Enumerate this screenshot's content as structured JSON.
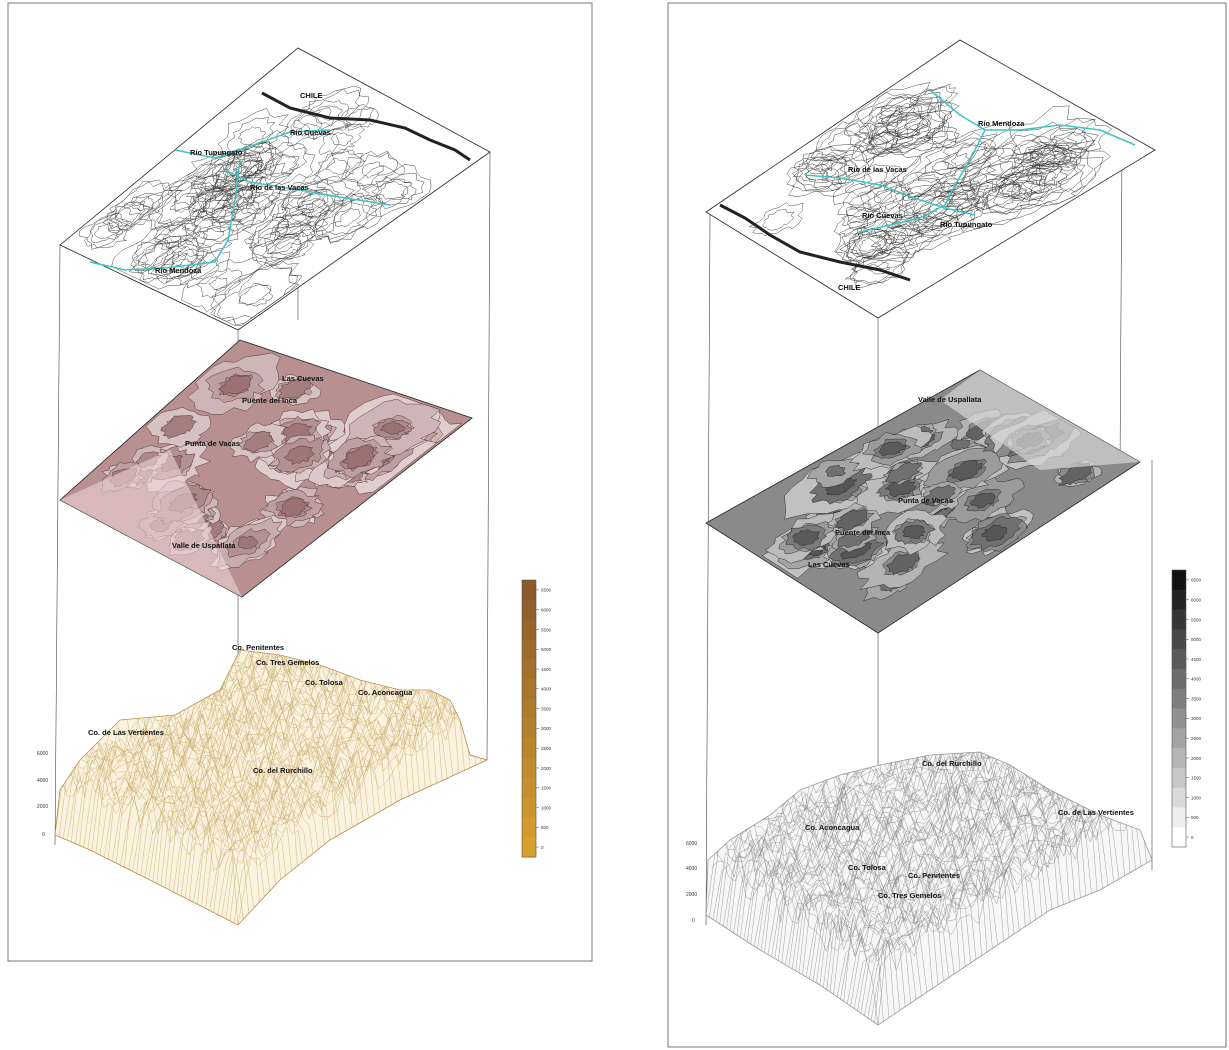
{
  "figure": {
    "panels": [
      {
        "id": "left",
        "top_map": {
          "country": "CHILE",
          "rivers": [
            "Río Cuevas",
            "Río Tupungato",
            "Río de las Vacas",
            "Río Mendoza"
          ]
        },
        "middle_map": {
          "places": [
            "Las Cuevas",
            "Puente del Inca",
            "Punta de Vacas",
            "Valle de Uspallata"
          ]
        },
        "surface": {
          "peaks": [
            "Co. Penitentes",
            "Co. Tres Gemelos",
            "Co. Tolosa",
            "Co. Aconcagua",
            "Co. de Las Vertientes",
            "Co. del Rurchillo"
          ],
          "z_ticks": [
            "6000",
            "4000",
            "2000",
            "0"
          ]
        },
        "colorbar": {
          "ticks": [
            "6500",
            "6000",
            "5500",
            "5000",
            "4500",
            "4000",
            "3500",
            "3000",
            "2500",
            "2000",
            "1500",
            "1000",
            "500",
            "0"
          ],
          "color_low": "#d9a02e",
          "color_high": "#8b5a2b"
        },
        "colors": {
          "contour_fill_dark": "#8a5a5a",
          "contour_fill_light": "#f1e4e4",
          "mesh": "#c8ab6a",
          "river": "#3fc4c4"
        }
      },
      {
        "id": "right",
        "top_map": {
          "country": "CHILE",
          "rivers": [
            "Río Mendoza",
            "Río de las Vacas",
            "Río Cuevas",
            "Río Tupungato"
          ]
        },
        "middle_map": {
          "places": [
            "Valle de Uspallata",
            "Punta de Vacas",
            "Puente del Inca",
            "Las Cuevas"
          ]
        },
        "surface": {
          "peaks": [
            "Co. del Rurchillo",
            "Co. de Las Vertientes",
            "Co. Aconcagua",
            "Co. Tolosa",
            "Co. Penitentes",
            "Co. Tres Gemelos"
          ],
          "z_ticks": [
            "6000",
            "4000",
            "2000",
            "0"
          ]
        },
        "colorbar": {
          "ticks": [
            "6500",
            "6000",
            "5500",
            "5000",
            "4500",
            "4000",
            "3500",
            "3000",
            "2500",
            "2000",
            "1500",
            "1000",
            "500",
            "0"
          ],
          "color_low": "#ffffff",
          "color_high": "#111111"
        },
        "colors": {
          "contour_fill_dark": "#3a3a3a",
          "contour_fill_light": "#dcdcdc",
          "mesh": "#8c8c8c",
          "river": "#3fc4c4"
        }
      }
    ]
  }
}
